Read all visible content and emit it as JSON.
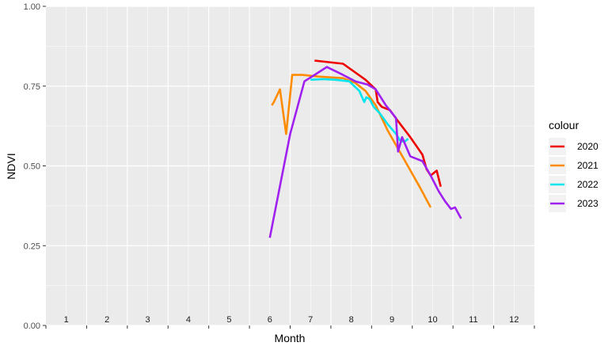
{
  "chart_data": {
    "type": "line",
    "xlabel": "Month",
    "ylabel": "NDVI",
    "xlim": [
      0.5,
      12.5
    ],
    "ylim": [
      0,
      1
    ],
    "x_ticks": [
      "1",
      "2",
      "3",
      "4",
      "5",
      "6",
      "7",
      "8",
      "9",
      "10",
      "11",
      "12"
    ],
    "y_ticks": [
      "0.00",
      "0.25",
      "0.50",
      "0.75",
      "1.00"
    ],
    "y_tick_values": [
      0,
      0.25,
      0.5,
      0.75,
      1
    ],
    "grid": true,
    "legend": {
      "title": "colour",
      "position": "right"
    },
    "series": [
      {
        "name": "2020",
        "color": "#ee0000",
        "points": [
          [
            7.1,
            0.83
          ],
          [
            7.8,
            0.82
          ],
          [
            8.35,
            0.77
          ],
          [
            8.6,
            0.74
          ],
          [
            8.65,
            0.7
          ],
          [
            8.75,
            0.685
          ],
          [
            8.95,
            0.675
          ],
          [
            9.15,
            0.64
          ],
          [
            9.45,
            0.59
          ],
          [
            9.75,
            0.535
          ],
          [
            9.85,
            0.49
          ],
          [
            9.95,
            0.47
          ],
          [
            10.1,
            0.485
          ],
          [
            10.2,
            0.435
          ]
        ]
      },
      {
        "name": "2021",
        "color": "#ff8c00",
        "points": [
          [
            6.05,
            0.69
          ],
          [
            6.1,
            0.7
          ],
          [
            6.25,
            0.74
          ],
          [
            6.4,
            0.6
          ],
          [
            6.55,
            0.785
          ],
          [
            6.8,
            0.785
          ],
          [
            7.2,
            0.78
          ],
          [
            7.8,
            0.775
          ],
          [
            8.1,
            0.76
          ],
          [
            8.35,
            0.735
          ],
          [
            8.6,
            0.69
          ],
          [
            8.9,
            0.61
          ],
          [
            9.3,
            0.52
          ],
          [
            9.7,
            0.43
          ],
          [
            9.95,
            0.37
          ]
        ]
      },
      {
        "name": "2022",
        "color": "#00e5ee",
        "points": [
          [
            7.0,
            0.77
          ],
          [
            7.3,
            0.772
          ],
          [
            7.6,
            0.77
          ],
          [
            7.95,
            0.765
          ],
          [
            8.2,
            0.735
          ],
          [
            8.25,
            0.72
          ],
          [
            8.32,
            0.7
          ],
          [
            8.37,
            0.715
          ],
          [
            8.45,
            0.71
          ],
          [
            8.55,
            0.685
          ],
          [
            8.7,
            0.665
          ],
          [
            8.9,
            0.63
          ],
          [
            9.1,
            0.6
          ],
          [
            9.2,
            0.58
          ],
          [
            9.3,
            0.575
          ],
          [
            9.4,
            0.585
          ]
        ]
      },
      {
        "name": "2023",
        "color": "#a020f0",
        "points": [
          [
            6.0,
            0.275
          ],
          [
            6.5,
            0.6
          ],
          [
            6.85,
            0.765
          ],
          [
            7.1,
            0.785
          ],
          [
            7.4,
            0.81
          ],
          [
            7.8,
            0.785
          ],
          [
            8.1,
            0.765
          ],
          [
            8.4,
            0.755
          ],
          [
            8.6,
            0.74
          ],
          [
            8.85,
            0.69
          ],
          [
            9.1,
            0.65
          ],
          [
            9.15,
            0.545
          ],
          [
            9.25,
            0.59
          ],
          [
            9.35,
            0.56
          ],
          [
            9.45,
            0.53
          ],
          [
            9.75,
            0.515
          ],
          [
            9.95,
            0.47
          ],
          [
            10.15,
            0.42
          ],
          [
            10.3,
            0.39
          ],
          [
            10.45,
            0.365
          ],
          [
            10.55,
            0.37
          ],
          [
            10.7,
            0.335
          ]
        ]
      }
    ]
  }
}
